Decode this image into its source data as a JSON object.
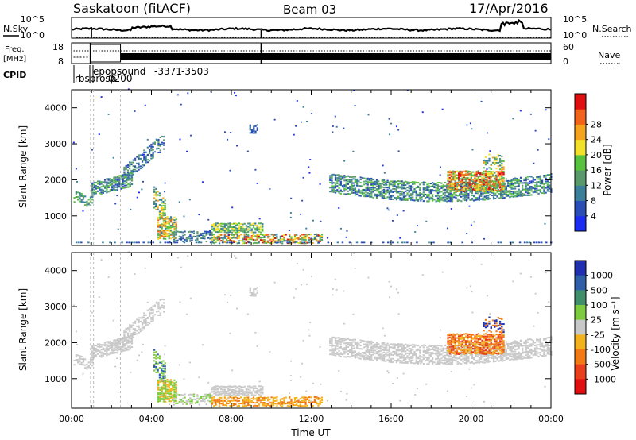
{
  "header": {
    "station": "Saskatoon (fitACF)",
    "beam": "Beam 03",
    "date": "17/Apr/2016"
  },
  "side_labels": {
    "nsky": "N.Sky",
    "freq_line1": "Freq.",
    "freq_line2": "[MHz]",
    "cpid": "CPID",
    "nsearch": "N.Search",
    "nave": "Nave"
  },
  "cpid_labels": [
    "rbsprosp",
    "0200",
    "epopsound",
    "-3371",
    "-3503"
  ],
  "colors": {
    "power": [
      "#1b2df0",
      "#2a4db8",
      "#3b7f9a",
      "#5a9a6a",
      "#57c23e",
      "#f2e02a",
      "#f5a41f",
      "#f2641a",
      "#e01010"
    ],
    "velocity": [
      "#2030b0",
      "#2f5fa8",
      "#3e8f6a",
      "#7dcc3e",
      "#c8c8c8",
      "#f2b21e",
      "#f27a14",
      "#e8401a",
      "#e01010"
    ]
  },
  "chart_data": [
    {
      "type": "line",
      "name": "noise-panel",
      "series_labels": [
        "N.Sky",
        "N.Search"
      ],
      "left_ticks": [
        "10^5",
        "10^0"
      ],
      "right_ticks": [
        "10^5",
        "10^0"
      ]
    },
    {
      "type": "line",
      "name": "frequency-nave-panel",
      "left_label": "Freq. [MHz]",
      "left_ticks": [
        18,
        8
      ],
      "right_label": "Nave",
      "right_ticks": [
        60,
        0
      ]
    },
    {
      "type": "heatmap",
      "name": "power-panel",
      "ylabel": "Slant Range [km]",
      "yticks": [
        1000,
        2000,
        3000,
        4000
      ],
      "ylim": [
        180,
        4500
      ],
      "xlim_hours": [
        0,
        24
      ],
      "colorbar_label": "Power [dB]",
      "colorbar_ticks": [
        4,
        8,
        12,
        16,
        20,
        24,
        28
      ]
    },
    {
      "type": "heatmap",
      "name": "velocity-panel",
      "ylabel": "Slant Range [km]",
      "yticks": [
        1000,
        2000,
        3000,
        4000
      ],
      "ylim": [
        180,
        4500
      ],
      "xlabel": "Time UT",
      "xticks": [
        "00:00",
        "04:00",
        "08:00",
        "12:00",
        "16:00",
        "20:00",
        "00:00"
      ],
      "colorbar_label": "Velocity [m s⁻¹]",
      "colorbar_ticks": [
        1000,
        500,
        100,
        25,
        -25,
        -100,
        -500,
        -1000
      ]
    }
  ]
}
